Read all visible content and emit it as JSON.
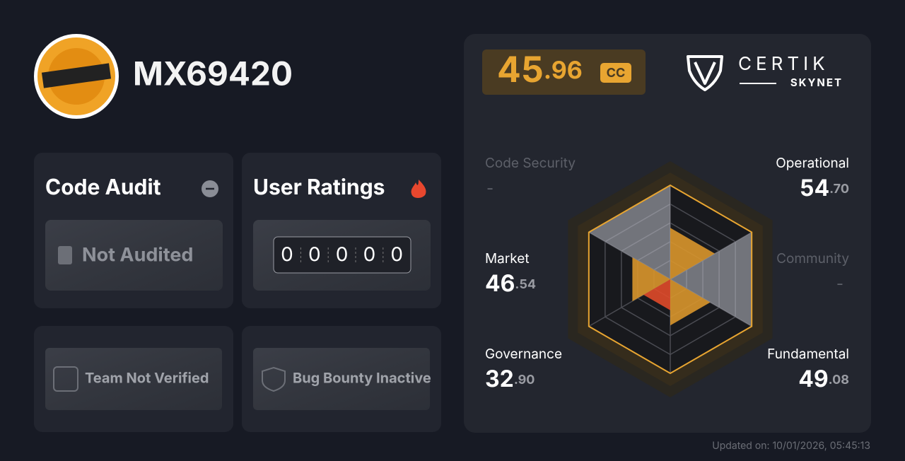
{
  "header": {
    "name": "MX69420"
  },
  "score": {
    "integer": "45",
    "decimal": ".96",
    "badge": "CC"
  },
  "brand": {
    "name": "CERTIK",
    "product": "SKYNET"
  },
  "cards": {
    "code_audit": {
      "title": "Code Audit",
      "status": "Not Audited"
    },
    "user_ratings": {
      "title": "User Ratings",
      "digits": [
        "0",
        "0",
        "0",
        "0",
        "0"
      ]
    }
  },
  "badges": [
    "Team Not Verified",
    "Bug Bounty Inactive"
  ],
  "radar": {
    "type": "radar",
    "rlim": [
      0,
      100
    ],
    "axes": [
      {
        "name": "Code Security",
        "value": null,
        "label": "-"
      },
      {
        "name": "Operational",
        "value": 54.7,
        "int": "54",
        "dec": ".70",
        "color": "#d9962c"
      },
      {
        "name": "Community",
        "value": null,
        "label": "-"
      },
      {
        "name": "Fundamental",
        "value": 49.08,
        "int": "49",
        "dec": ".08",
        "color": "#d9962c"
      },
      {
        "name": "Governance",
        "value": 32.9,
        "int": "32",
        "dec": ".90",
        "color": "#e04a2a"
      },
      {
        "name": "Market",
        "value": 46.54,
        "int": "46",
        "dec": ".54",
        "color": "#d9962c"
      }
    ]
  },
  "footer": {
    "updated": "Updated on: 10/01/2026, 05:45:13"
  }
}
